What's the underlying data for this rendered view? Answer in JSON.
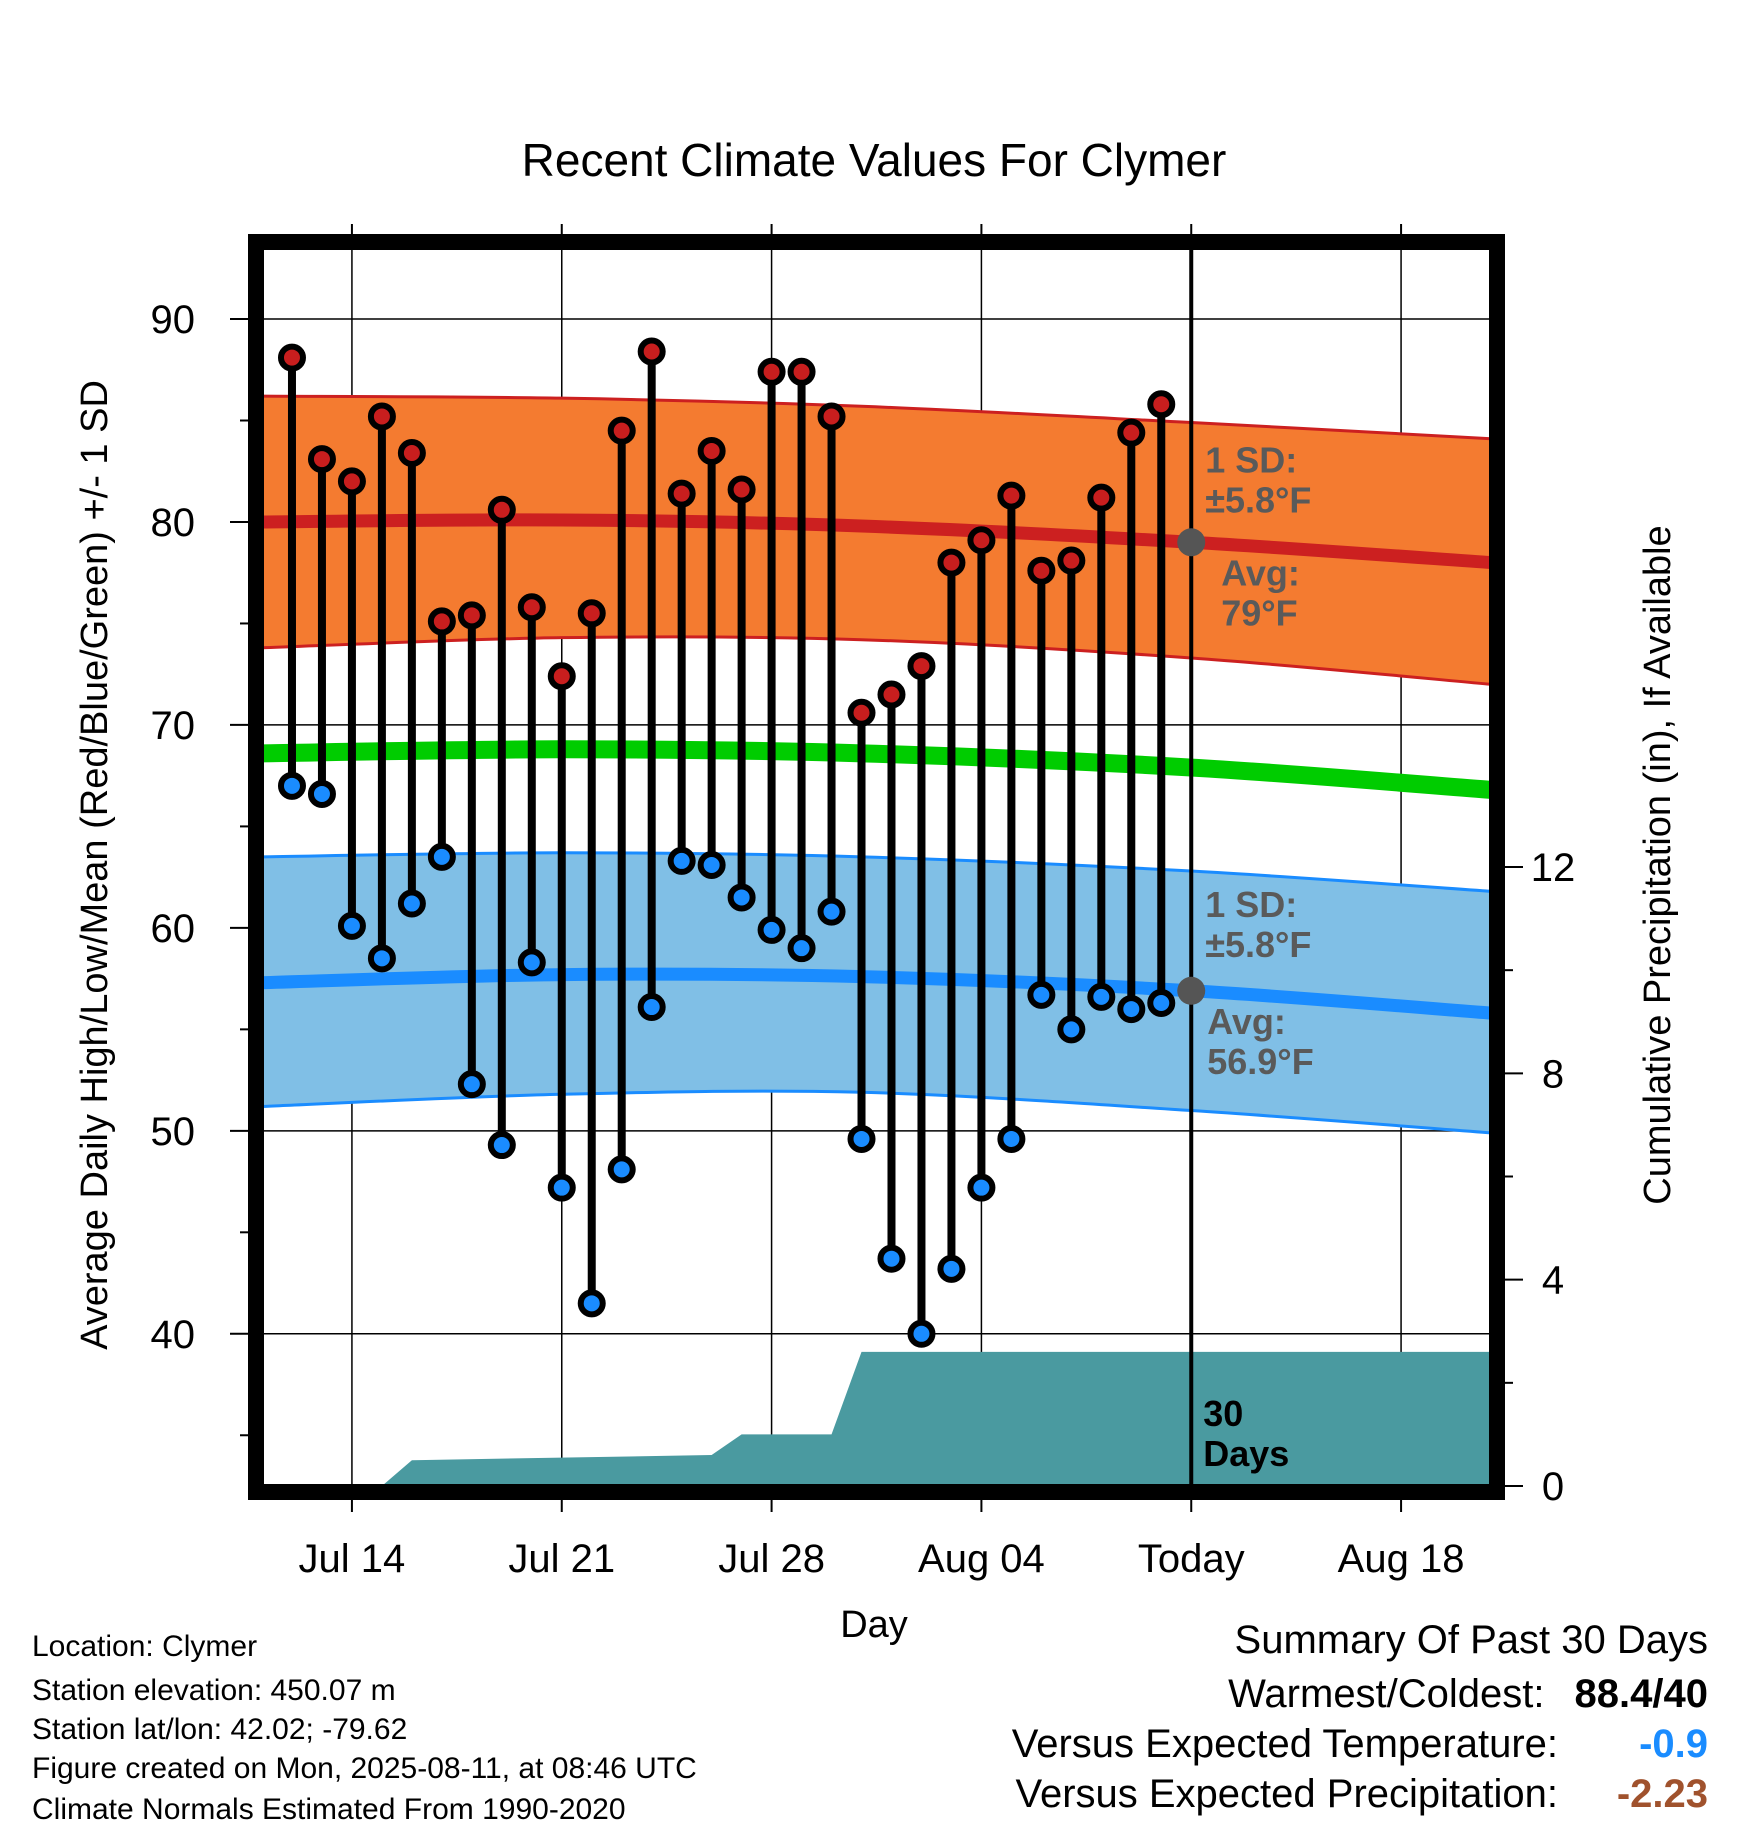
{
  "chart_data": {
    "type": "line",
    "title": "Recent Climate Values For Clymer",
    "xlabel": "Day",
    "ylabel": "Average Daily High/Low/Mean (Red/Blue/Green) +/- 1 SD",
    "y2label": "Cumulative Precipitation (in), If Available",
    "ylim": [
      32.5,
      93.5
    ],
    "y2lim": [
      0,
      24
    ],
    "yticks": [
      40,
      50,
      60,
      70,
      80,
      90
    ],
    "y2ticks": [
      0,
      4,
      8,
      12
    ],
    "xlim": [
      "2025-07-11",
      "2025-08-21"
    ],
    "xtick_dates": [
      "2025-07-14",
      "2025-07-21",
      "2025-07-28",
      "2025-08-04",
      "2025-08-11",
      "2025-08-18"
    ],
    "xtick_labels": [
      "Jul 14",
      "Jul 21",
      "Jul 28",
      "Aug 04",
      "Today",
      "Aug 18"
    ],
    "today": "2025-08-11",
    "grid": true,
    "dates": [
      "2025-07-12",
      "2025-07-13",
      "2025-07-14",
      "2025-07-15",
      "2025-07-16",
      "2025-07-17",
      "2025-07-18",
      "2025-07-19",
      "2025-07-20",
      "2025-07-21",
      "2025-07-22",
      "2025-07-23",
      "2025-07-24",
      "2025-07-25",
      "2025-07-26",
      "2025-07-27",
      "2025-07-28",
      "2025-07-29",
      "2025-07-30",
      "2025-07-31",
      "2025-08-01",
      "2025-08-02",
      "2025-08-03",
      "2025-08-04",
      "2025-08-05",
      "2025-08-06",
      "2025-08-07",
      "2025-08-08",
      "2025-08-09",
      "2025-08-10"
    ],
    "high": [
      88.1,
      83.1,
      82.0,
      85.2,
      83.4,
      75.1,
      75.4,
      80.6,
      75.8,
      72.4,
      75.5,
      84.5,
      88.4,
      81.4,
      83.5,
      81.6,
      87.4,
      87.4,
      85.2,
      70.6,
      71.5,
      72.9,
      78.0,
      79.1,
      81.3,
      77.6,
      78.1,
      81.2,
      84.4,
      85.8
    ],
    "low": [
      67.0,
      66.6,
      60.1,
      58.5,
      61.2,
      63.5,
      52.3,
      49.3,
      58.3,
      47.2,
      41.5,
      48.1,
      56.1,
      63.3,
      63.1,
      61.5,
      59.9,
      59.0,
      60.8,
      49.6,
      43.7,
      40.0,
      43.2,
      47.2,
      49.6,
      56.7,
      55.0,
      56.6,
      56.0,
      56.3
    ],
    "normal_dates": [
      "2025-07-11",
      "2025-07-21",
      "2025-07-31",
      "2025-08-11",
      "2025-08-21"
    ],
    "normal_high": [
      80.0,
      80.1,
      79.8,
      79.0,
      78.0
    ],
    "normal_mean": [
      68.6,
      68.8,
      68.6,
      67.9,
      66.8
    ],
    "normal_low": [
      57.3,
      57.7,
      57.6,
      56.9,
      55.8
    ],
    "high_sd_band": {
      "upper": [
        86.2,
        86.1,
        85.7,
        84.9,
        84.1
      ],
      "lower": [
        73.8,
        74.3,
        74.2,
        73.3,
        72.0
      ]
    },
    "low_sd_band": {
      "upper": [
        63.5,
        63.7,
        63.5,
        62.8,
        61.8
      ],
      "lower": [
        51.2,
        51.8,
        51.9,
        51.0,
        49.9
      ]
    },
    "precip_cumulative": [
      {
        "date": "2025-07-11",
        "value": 0
      },
      {
        "date": "2025-07-15",
        "value": 0
      },
      {
        "date": "2025-07-16",
        "value": 0.5
      },
      {
        "date": "2025-07-26",
        "value": 0.6
      },
      {
        "date": "2025-07-27",
        "value": 1.0
      },
      {
        "date": "2025-07-30",
        "value": 1.0
      },
      {
        "date": "2025-07-31",
        "value": 2.6
      },
      {
        "date": "2025-08-21",
        "value": 2.6
      }
    ],
    "annotations": {
      "high_sd": [
        "1 SD:",
        "±5.8°F"
      ],
      "high_avg": [
        "Avg:",
        "79°F"
      ],
      "low_sd": [
        "1 SD:",
        "±5.8°F"
      ],
      "low_avg": [
        "Avg:",
        "56.9°F"
      ],
      "period": [
        "30",
        "Days"
      ]
    },
    "colors": {
      "high_band": "#f47b30",
      "high_line": "#cc2020",
      "mean_line": "#00cc00",
      "low_band": "#80bfe6",
      "low_line": "#1a8cff",
      "precip": "#4a9aa0",
      "high_marker": "#c81e1e",
      "low_marker": "#1a8cff",
      "avg_dot": "#555555"
    }
  },
  "info": {
    "location": "Location: Clymer",
    "elevation": "Station elevation: 450.07 m",
    "latlon": "Station lat/lon: 42.02; -79.62",
    "created": "Figure created on Mon, 2025-08-11, at 08:46 UTC",
    "normals": "Climate Normals Estimated From 1990-2020"
  },
  "summary": {
    "heading": "Summary Of Past 30 Days",
    "warm_cold_label": "Warmest/Coldest:",
    "warm_cold_value": "88.4/40",
    "temp_label": "Versus Expected Temperature:",
    "temp_value": "-0.9",
    "temp_color": "#1a8cff",
    "precip_label": "Versus Expected Precipitation:",
    "precip_value": "-2.23",
    "precip_color": "#a0522d"
  }
}
